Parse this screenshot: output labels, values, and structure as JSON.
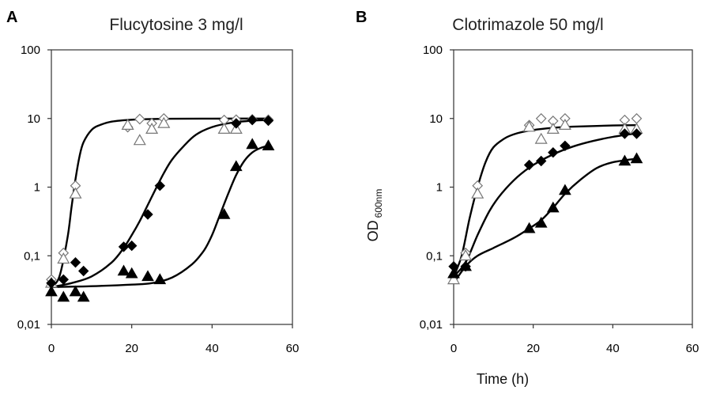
{
  "charts": [
    {
      "id": "A",
      "panel_letter": "A",
      "type": "scatter",
      "title": "Flucytosine 3 mg/l",
      "xlabel": "",
      "ylabel": "",
      "xlim": [
        0,
        60
      ],
      "xticks": [
        0,
        20,
        40,
        60
      ],
      "xtick_labels": [
        "0",
        "20",
        "40",
        "60"
      ],
      "yscale": "log",
      "ylim": [
        0.01,
        100
      ],
      "yticks": [
        0.01,
        0.1,
        1,
        10,
        100
      ],
      "ytick_labels": [
        "0,01",
        "0,1",
        "1",
        "10",
        "100"
      ],
      "series": [
        {
          "name": "open-diamond",
          "marker": "diamond",
          "filled": false,
          "x": [
            0,
            3,
            6,
            19,
            22,
            25,
            28,
            43,
            46,
            50,
            54
          ],
          "y": [
            0.045,
            0.11,
            1.05,
            7.5,
            9.8,
            8.5,
            10,
            9.5,
            9.6,
            9.7,
            9.6
          ]
        },
        {
          "name": "open-triangle",
          "marker": "triangle",
          "filled": false,
          "x": [
            0,
            3,
            6,
            19,
            22,
            25,
            28,
            43,
            46
          ],
          "y": [
            0.04,
            0.09,
            0.8,
            8,
            4.8,
            7,
            8.5,
            7,
            7
          ]
        },
        {
          "name": "filled-diamond",
          "marker": "diamond",
          "filled": true,
          "x": [
            0,
            3,
            6,
            8,
            18,
            20,
            24,
            27,
            46,
            50,
            54
          ],
          "y": [
            0.04,
            0.045,
            0.08,
            0.06,
            0.135,
            0.14,
            0.4,
            1.05,
            8.5,
            9.5,
            9.3
          ]
        },
        {
          "name": "filled-triangle",
          "marker": "triangle",
          "filled": true,
          "x": [
            0,
            3,
            6,
            8,
            18,
            20,
            24,
            27,
            43,
            46,
            50,
            54
          ],
          "y": [
            0.03,
            0.025,
            0.03,
            0.025,
            0.06,
            0.055,
            0.05,
            0.045,
            0.4,
            2,
            4.2,
            4
          ]
        }
      ],
      "fits": [
        {
          "name": "fit-open",
          "x": [
            0,
            2,
            4,
            5,
            6,
            7,
            8,
            10,
            12,
            15,
            20,
            25,
            30,
            40,
            54
          ],
          "y": [
            0.035,
            0.05,
            0.18,
            0.5,
            1.3,
            2.8,
            4.5,
            6.8,
            8.0,
            9.0,
            9.6,
            9.8,
            9.9,
            9.95,
            10
          ]
        },
        {
          "name": "fit-diamond",
          "x": [
            0,
            5,
            10,
            15,
            18,
            20,
            22,
            24,
            26,
            28,
            30,
            33,
            36,
            40,
            45,
            50,
            54
          ],
          "y": [
            0.035,
            0.04,
            0.05,
            0.08,
            0.13,
            0.2,
            0.32,
            0.55,
            0.95,
            1.6,
            2.5,
            4.0,
            5.8,
            7.5,
            8.7,
            9.3,
            9.5
          ]
        },
        {
          "name": "fit-triangle",
          "x": [
            0,
            10,
            20,
            25,
            30,
            35,
            38,
            40,
            42,
            44,
            46,
            48,
            50,
            52,
            54
          ],
          "y": [
            0.035,
            0.036,
            0.038,
            0.04,
            0.048,
            0.075,
            0.12,
            0.2,
            0.4,
            0.8,
            1.5,
            2.4,
            3.2,
            3.7,
            4.0
          ]
        }
      ]
    },
    {
      "id": "B",
      "panel_letter": "B",
      "type": "scatter",
      "title": "Clotrimazole 50 mg/l",
      "xlabel": "Time (h)",
      "ylabel": "OD",
      "ylabel_sub": "600nm",
      "xlim": [
        0,
        60
      ],
      "xticks": [
        0,
        20,
        40,
        60
      ],
      "xtick_labels": [
        "0",
        "20",
        "40",
        "60"
      ],
      "yscale": "log",
      "ylim": [
        0.01,
        100
      ],
      "yticks": [
        0.01,
        0.1,
        1,
        10,
        100
      ],
      "ytick_labels": [
        "0,01",
        "0,1",
        "1",
        "10",
        "100"
      ],
      "series": [
        {
          "name": "open-diamond",
          "marker": "diamond",
          "filled": false,
          "x": [
            0,
            3,
            6,
            19,
            22,
            25,
            28,
            43,
            46
          ],
          "y": [
            0.05,
            0.11,
            1.05,
            8,
            10,
            9.2,
            10,
            9.5,
            10
          ]
        },
        {
          "name": "open-triangle",
          "marker": "triangle",
          "filled": false,
          "x": [
            0,
            3,
            6,
            19,
            22,
            25,
            28,
            43,
            46
          ],
          "y": [
            0.045,
            0.1,
            0.8,
            7.5,
            5,
            7,
            8,
            7,
            7
          ]
        },
        {
          "name": "filled-diamond",
          "marker": "diamond",
          "filled": true,
          "x": [
            0,
            3,
            19,
            22,
            25,
            28,
            43,
            46
          ],
          "y": [
            0.07,
            0.07,
            2.1,
            2.4,
            3.2,
            4,
            6,
            6
          ]
        },
        {
          "name": "filled-triangle",
          "marker": "triangle",
          "filled": true,
          "x": [
            0,
            3,
            19,
            22,
            25,
            28,
            43,
            46
          ],
          "y": [
            0.055,
            0.07,
            0.25,
            0.3,
            0.5,
            0.9,
            2.4,
            2.6
          ]
        }
      ],
      "fits": [
        {
          "name": "fit-open",
          "x": [
            0,
            2,
            4,
            6,
            8,
            10,
            13,
            16,
            20,
            25,
            30,
            40,
            46
          ],
          "y": [
            0.05,
            0.1,
            0.35,
            1.0,
            2.3,
            3.8,
            5.2,
            6.1,
            6.8,
            7.3,
            7.6,
            7.9,
            8.0
          ]
        },
        {
          "name": "fit-diamond",
          "x": [
            0,
            3,
            6,
            9,
            12,
            16,
            20,
            25,
            30,
            35,
            40,
            46
          ],
          "y": [
            0.05,
            0.08,
            0.2,
            0.45,
            0.8,
            1.4,
            2.1,
            3.0,
            3.9,
            4.7,
            5.4,
            6.1
          ]
        },
        {
          "name": "fit-triangle",
          "x": [
            0,
            3,
            6,
            10,
            15,
            19,
            22,
            25,
            28,
            32,
            36,
            40,
            46
          ],
          "y": [
            0.04,
            0.07,
            0.1,
            0.13,
            0.18,
            0.25,
            0.33,
            0.5,
            0.8,
            1.3,
            1.9,
            2.3,
            2.6
          ]
        }
      ]
    }
  ]
}
